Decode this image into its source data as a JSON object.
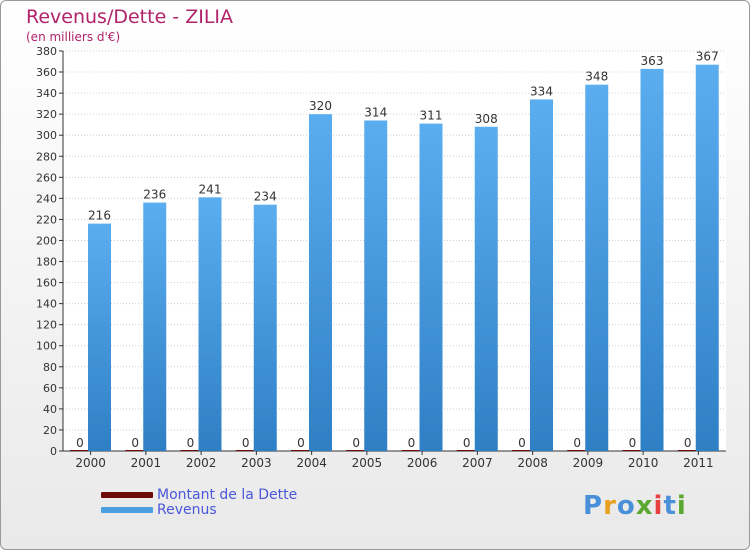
{
  "header": {
    "title": "Revenus/Dette - ZILIA",
    "subtitle": "(en milliers d'€)"
  },
  "legend": {
    "debt_label": "Montant de la Dette",
    "revenue_label": "Revenus",
    "debt_color": "#6e0a0a",
    "revenue_color": "#4a9fe0"
  },
  "brand": {
    "letters": [
      "P",
      "r",
      "o",
      "x",
      "i",
      "t",
      "i"
    ],
    "colors": [
      "#4a90d9",
      "#e8a020",
      "#4a90d9",
      "#5aa832",
      "#e84040",
      "#4a90d9",
      "#5aa832"
    ]
  },
  "chart_data": {
    "type": "bar",
    "categories": [
      "2000",
      "2001",
      "2002",
      "2003",
      "2004",
      "2005",
      "2006",
      "2007",
      "2008",
      "2009",
      "2010",
      "2011"
    ],
    "series": [
      {
        "name": "Montant de la Dette",
        "values": [
          0,
          0,
          0,
          0,
          0,
          0,
          0,
          0,
          0,
          0,
          0,
          0
        ]
      },
      {
        "name": "Revenus",
        "values": [
          216,
          236,
          241,
          234,
          320,
          314,
          311,
          308,
          334,
          348,
          363,
          367
        ]
      }
    ],
    "title": "Revenus/Dette - ZILIA",
    "ylabel": "(en milliers d'€)",
    "ylim": [
      0,
      380
    ],
    "ytick_step": 20,
    "grid": true,
    "legend_position": "bottom-left"
  }
}
